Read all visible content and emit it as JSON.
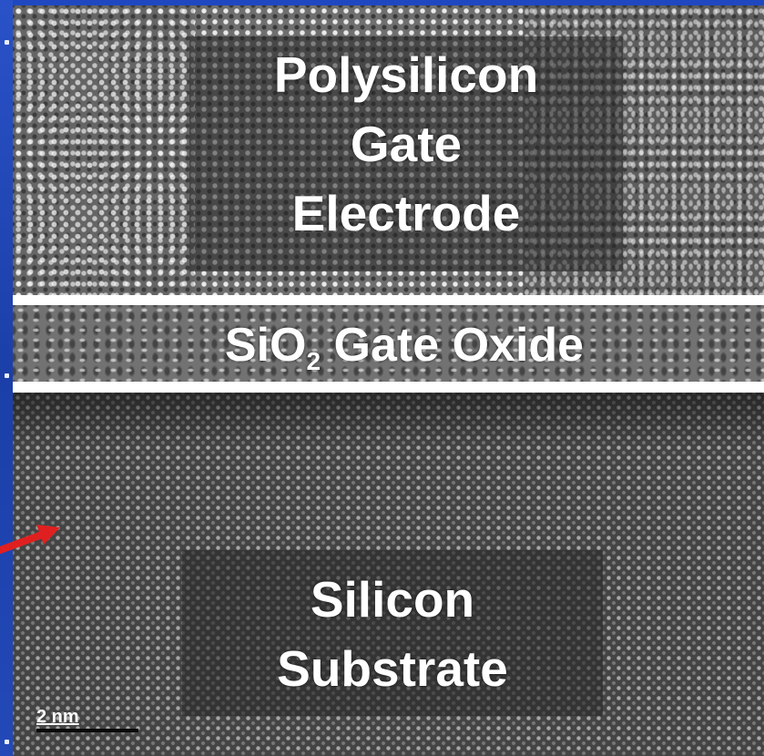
{
  "image": {
    "labels": {
      "polysilicon": [
        "Polysilicon",
        "Gate",
        "Electrode"
      ],
      "oxide_main": "SiO",
      "oxide_subscript": "2",
      "oxide_rest": " Gate Oxide",
      "substrate": [
        "Silicon",
        "Substrate"
      ]
    },
    "scale_bar": "2 nm",
    "colors": {
      "boundary_lines": "#ffffff",
      "slide_background": "#1b3fa8",
      "arrow": "#e02020",
      "label_text": "#ffffff"
    }
  }
}
